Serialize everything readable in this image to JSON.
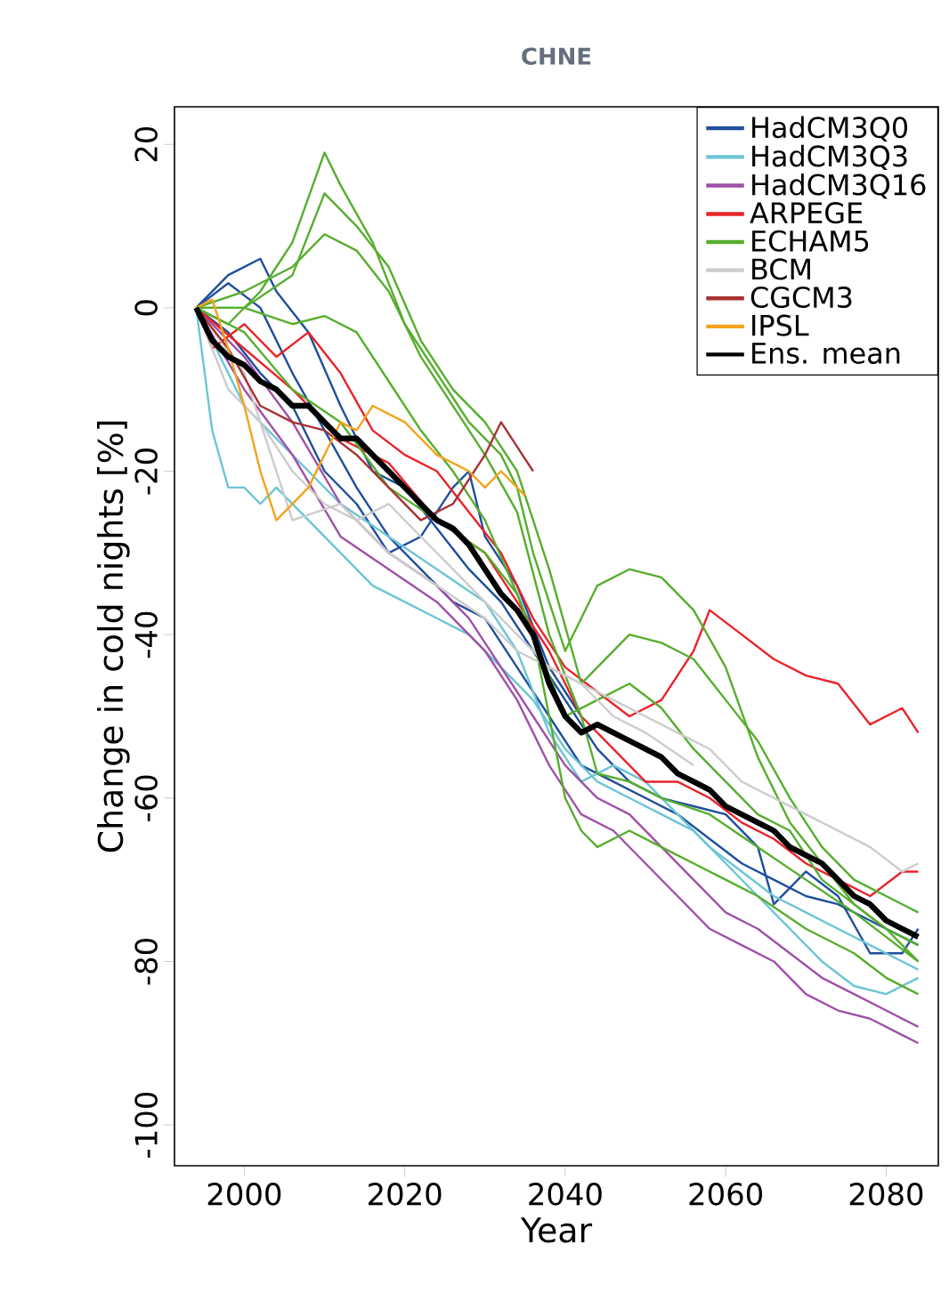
{
  "chart_data": {
    "type": "line",
    "title": "CHNE",
    "xlabel": "Year",
    "ylabel": "Change in cold nights [%]",
    "xlim": [
      1991.3,
      2086.5
    ],
    "ylim": [
      -105,
      24.6
    ],
    "xticks": [
      2000,
      2020,
      2040,
      2060,
      2080
    ],
    "yticks": [
      -100,
      -80,
      -60,
      -40,
      -20,
      0,
      20
    ],
    "legend": "top right",
    "grid": false,
    "marker": "none",
    "line_style": "solid",
    "series": [
      {
        "name": "HadCM3Q0",
        "color": "#1f4e9c",
        "x": [
          1994,
          1998,
          2002,
          2004,
          2008,
          2012,
          2016,
          2020,
          2024,
          2028,
          2032,
          2036,
          2040,
          2044,
          2048,
          2052,
          2056,
          2060,
          2064,
          2066,
          2070,
          2074,
          2078,
          2082,
          2084
        ],
        "values": [
          0,
          4,
          6,
          2,
          -3,
          -12,
          -20,
          -22,
          -27,
          -32,
          -36,
          -42,
          -48,
          -54,
          -58,
          -60,
          -61,
          -62,
          -66,
          -73,
          -69,
          -72,
          -79,
          -79,
          -76
        ]
      },
      {
        "color": "#1f4e9c",
        "x": [
          1994,
          1998,
          2002,
          2006,
          2010,
          2014,
          2018,
          2022,
          2026,
          2030,
          2034,
          2038,
          2042,
          2046,
          2050,
          2054,
          2058,
          2062,
          2066,
          2070,
          2074,
          2078,
          2082,
          2084
        ],
        "values": [
          0,
          3,
          0,
          -8,
          -15,
          -22,
          -28,
          -32,
          -36,
          -38,
          -44,
          -50,
          -56,
          -58,
          -60,
          -62,
          -65,
          -68,
          -70,
          -72,
          -73,
          -75,
          -77,
          -78
        ]
      },
      {
        "color": "#1f4e9c",
        "x": [
          1994,
          1998,
          2002,
          2006,
          2010,
          2014,
          2018,
          2022,
          2026,
          2028,
          2030,
          2034,
          2038,
          2042
        ],
        "values": [
          0,
          -3,
          -8,
          -12,
          -20,
          -24,
          -30,
          -28,
          -22,
          -20,
          -28,
          -34,
          -44,
          -50
        ]
      },
      {
        "name": "HadCM3Q3",
        "color": "#6cc5d6",
        "x": [
          1994,
          1996,
          1998,
          2000,
          2002,
          2004,
          2008,
          2012,
          2016,
          2020,
          2024,
          2028,
          2032,
          2036,
          2040,
          2044,
          2048,
          2052,
          2056,
          2060,
          2064,
          2068,
          2072,
          2076,
          2080,
          2084
        ],
        "values": [
          0,
          -15,
          -22,
          -22,
          -24,
          -22,
          -26,
          -30,
          -34,
          -36,
          -38,
          -40,
          -44,
          -48,
          -54,
          -58,
          -60,
          -62,
          -64,
          -68,
          -72,
          -76,
          -80,
          -83,
          -84,
          -82
        ]
      },
      {
        "color": "#6cc5d6",
        "x": [
          1994,
          2000,
          2006,
          2012,
          2018,
          2024,
          2030,
          2034,
          2038,
          2042,
          2046,
          2050,
          2054,
          2058,
          2062,
          2066,
          2070,
          2074,
          2078,
          2082,
          2084
        ],
        "values": [
          0,
          -12,
          -18,
          -24,
          -28,
          -32,
          -36,
          -42,
          -52,
          -58,
          -56,
          -58,
          -62,
          -66,
          -69,
          -72,
          -74,
          -76,
          -78,
          -80,
          -81
        ]
      },
      {
        "name": "HadCM3Q16",
        "color": "#a050a8",
        "x": [
          1994,
          2000,
          2006,
          2012,
          2018,
          2024,
          2028,
          2032,
          2036,
          2040,
          2044,
          2048,
          2052,
          2056,
          2060,
          2064,
          2068,
          2072,
          2076,
          2080,
          2084
        ],
        "values": [
          0,
          -6,
          -14,
          -24,
          -30,
          -34,
          -38,
          -44,
          -50,
          -56,
          -60,
          -62,
          -66,
          -70,
          -74,
          -76,
          -79,
          -82,
          -84,
          -86,
          -88
        ]
      },
      {
        "color": "#a050a8",
        "x": [
          1994,
          2000,
          2006,
          2012,
          2018,
          2024,
          2030,
          2034,
          2038,
          2042,
          2046,
          2050,
          2054,
          2058,
          2062,
          2066,
          2070,
          2074,
          2078,
          2082,
          2084
        ],
        "values": [
          0,
          -10,
          -18,
          -28,
          -32,
          -36,
          -42,
          -48,
          -56,
          -62,
          -64,
          -68,
          -72,
          -76,
          -78,
          -80,
          -84,
          -86,
          -87,
          -89,
          -90
        ]
      },
      {
        "name": "ARPEGE",
        "color": "#e8242a",
        "x": [
          1994,
          1996,
          2000,
          2004,
          2008,
          2012,
          2016,
          2020,
          2024,
          2028,
          2032,
          2036,
          2040,
          2044,
          2048,
          2052,
          2056,
          2058,
          2062,
          2066,
          2070,
          2074,
          2078,
          2082,
          2084
        ],
        "values": [
          0,
          -5,
          -2,
          -6,
          -3,
          -8,
          -15,
          -18,
          -20,
          -25,
          -30,
          -38,
          -44,
          -47,
          -50,
          -48,
          -42,
          -37,
          -40,
          -43,
          -45,
          -46,
          -51,
          -49,
          -52
        ]
      },
      {
        "color": "#e8242a",
        "x": [
          1994,
          2000,
          2006,
          2012,
          2018,
          2024,
          2030,
          2034,
          2038,
          2042,
          2046,
          2050,
          2054,
          2058,
          2062,
          2066,
          2070,
          2074,
          2078,
          2082,
          2084
        ],
        "values": [
          0,
          -5,
          -10,
          -16,
          -19,
          -26,
          -30,
          -36,
          -42,
          -50,
          -54,
          -58,
          -58,
          -60,
          -63,
          -65,
          -68,
          -70,
          -72,
          -69,
          -69
        ]
      },
      {
        "name": "ECHAM5",
        "color": "#56ae2e",
        "x": [
          1994,
          1998,
          2002,
          2006,
          2010,
          2012,
          2016,
          2020,
          2024,
          2028,
          2032,
          2034,
          2036,
          2040,
          2044,
          2048,
          2052,
          2056,
          2060,
          2064,
          2068,
          2072,
          2076,
          2080,
          2084
        ],
        "values": [
          0,
          -2,
          2,
          8,
          19,
          15,
          8,
          -2,
          -8,
          -14,
          -18,
          -22,
          -30,
          -42,
          -34,
          -32,
          -33,
          -37,
          -44,
          -55,
          -63,
          -68,
          -73,
          -76,
          -78
        ]
      },
      {
        "color": "#56ae2e",
        "x": [
          1994,
          2000,
          2006,
          2010,
          2014,
          2018,
          2022,
          2026,
          2030,
          2034,
          2038,
          2042,
          2044,
          2048,
          2052,
          2056,
          2060,
          2064,
          2068,
          2072,
          2076,
          2080,
          2084
        ],
        "values": [
          0,
          0,
          4,
          14,
          10,
          5,
          -4,
          -10,
          -14,
          -20,
          -32,
          -46,
          -44,
          -40,
          -41,
          -43,
          -48,
          -53,
          -60,
          -66,
          -70,
          -72,
          -74
        ]
      },
      {
        "color": "#56ae2e",
        "x": [
          1994,
          2000,
          2006,
          2010,
          2014,
          2018,
          2022,
          2026,
          2030,
          2034,
          2038,
          2040,
          2044,
          2048,
          2052,
          2056,
          2060,
          2064,
          2068,
          2072,
          2076,
          2080,
          2084
        ],
        "values": [
          0,
          0,
          -2,
          -1,
          -3,
          -9,
          -15,
          -20,
          -26,
          -35,
          -45,
          -50,
          -48,
          -46,
          -49,
          -54,
          -58,
          -62,
          -64,
          -70,
          -73,
          -76,
          -80
        ]
      },
      {
        "color": "#56ae2e",
        "x": [
          1994,
          2000,
          2006,
          2012,
          2018,
          2024,
          2030,
          2034,
          2036,
          2040,
          2042,
          2044,
          2048,
          2052,
          2056,
          2060,
          2064,
          2070,
          2076,
          2080,
          2084
        ],
        "values": [
          0,
          -3,
          -10,
          -14,
          -22,
          -26,
          -30,
          -35,
          -40,
          -60,
          -64,
          -66,
          -64,
          -66,
          -68,
          -70,
          -72,
          -76,
          -79,
          -82,
          -84
        ]
      },
      {
        "color": "#56ae2e",
        "x": [
          1994,
          2000,
          2006,
          2010,
          2014,
          2018,
          2022,
          2026,
          2030,
          2034,
          2038,
          2042,
          2044,
          2048,
          2052,
          2058,
          2064,
          2070,
          2076,
          2080,
          2084
        ],
        "values": [
          0,
          2,
          5,
          9,
          7,
          2,
          -6,
          -12,
          -18,
          -25,
          -40,
          -50,
          -57,
          -58,
          -60,
          -62,
          -66,
          -70,
          -74,
          -77,
          -80
        ]
      },
      {
        "name": "BCM",
        "color": "#cccccc",
        "x": [
          1994,
          1998,
          2002,
          2006,
          2010,
          2014,
          2018,
          2022,
          2026,
          2030,
          2034,
          2038,
          2042,
          2046,
          2050,
          2054,
          2058,
          2062,
          2066,
          2070,
          2074,
          2078,
          2082,
          2084
        ],
        "values": [
          0,
          -10,
          -14,
          -20,
          -24,
          -26,
          -24,
          -28,
          -32,
          -36,
          -40,
          -44,
          -46,
          -48,
          -50,
          -52,
          -54,
          -58,
          -60,
          -62,
          -64,
          -66,
          -69,
          -68
        ]
      },
      {
        "color": "#cccccc",
        "x": [
          1994,
          2000,
          2006,
          2012,
          2018,
          2024,
          2030,
          2034,
          2038,
          2042,
          2046,
          2050,
          2056
        ],
        "values": [
          0,
          -8,
          -26,
          -24,
          -30,
          -34,
          -38,
          -42,
          -44,
          -46,
          -50,
          -52,
          -56
        ]
      },
      {
        "name": "CGCM3",
        "color": "#a83232",
        "x": [
          1994,
          1998,
          2002,
          2006,
          2010,
          2014,
          2018,
          2022,
          2026,
          2030,
          2032,
          2034,
          2036
        ],
        "values": [
          0,
          -5,
          -12,
          -14,
          -15,
          -18,
          -22,
          -26,
          -24,
          -18,
          -14,
          -17,
          -20
        ]
      },
      {
        "name": "IPSL",
        "color": "#f5a21b",
        "x": [
          1994,
          1996,
          1998,
          2000,
          2002,
          2004,
          2006,
          2008,
          2010,
          2012,
          2014,
          2016,
          2020,
          2024,
          2028,
          2030,
          2032,
          2034,
          2035
        ],
        "values": [
          0,
          1,
          -5,
          -12,
          -20,
          -26,
          -24,
          -22,
          -18,
          -14,
          -15,
          -12,
          -14,
          -18,
          -20,
          -22,
          -20,
          -22,
          -23
        ]
      },
      {
        "name": "Ens. mean",
        "color": "#000000",
        "x": [
          1994,
          1996,
          1998,
          2000,
          2002,
          2004,
          2006,
          2008,
          2010,
          2012,
          2014,
          2016,
          2018,
          2020,
          2022,
          2024,
          2026,
          2028,
          2030,
          2032,
          2034,
          2036,
          2038,
          2040,
          2042,
          2044,
          2046,
          2048,
          2050,
          2052,
          2054,
          2056,
          2058,
          2060,
          2062,
          2064,
          2066,
          2068,
          2070,
          2072,
          2074,
          2076,
          2078,
          2080,
          2082,
          2084
        ],
        "values": [
          0,
          -4,
          -6,
          -7,
          -9,
          -10,
          -12,
          -12,
          -14,
          -16,
          -16,
          -18,
          -20,
          -22,
          -24,
          -26,
          -27,
          -29,
          -32,
          -35,
          -37,
          -40,
          -46,
          -50,
          -52,
          -51,
          -52,
          -53,
          -54,
          -55,
          -57,
          -58,
          -59,
          -61,
          -62,
          -63,
          -64,
          -66,
          -67,
          -68,
          -70,
          -72,
          -73,
          -75,
          -76,
          -77
        ]
      }
    ]
  }
}
